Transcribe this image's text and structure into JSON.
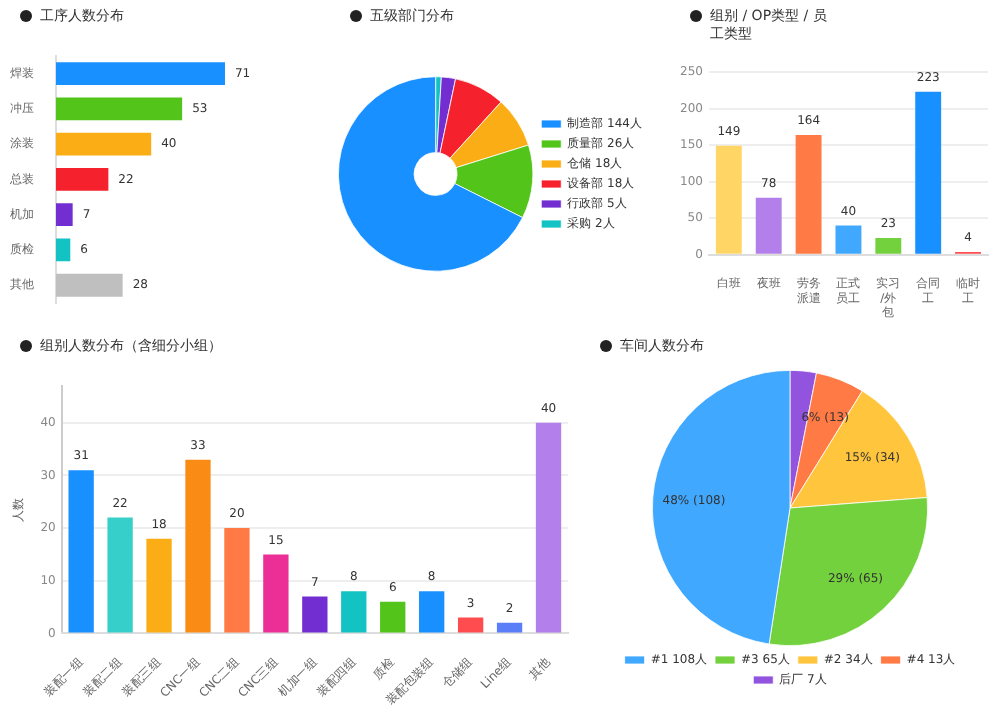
{
  "chart_data": [
    {
      "type": "bar",
      "title": "工序人数分布",
      "orientation": "horizontal",
      "categories": [
        "焊装",
        "冲压",
        "涂装",
        "总装",
        "机加",
        "质检",
        "其他"
      ],
      "values": [
        71,
        53,
        40,
        22,
        7,
        6,
        28
      ],
      "colors": [
        "#1890ff",
        "#52c41a",
        "#faad14",
        "#f5222d",
        "#722ed1",
        "#13c2c2",
        "#bfbfbf"
      ],
      "data_labels": true,
      "tick_labels": "y"
    },
    {
      "type": "donut",
      "title": "五级部门分布",
      "categories": [
        "制造部 144人",
        "质量部 26人",
        "仓储 18人",
        "设备部 18人",
        "行政部 5人",
        "采购 2人"
      ],
      "values": [
        144,
        26,
        18,
        18,
        5,
        2
      ],
      "colors": [
        "#1890ff",
        "#52c41a",
        "#faad14",
        "#f5222d",
        "#722ed1",
        "#13c2c2"
      ],
      "legend": "right"
    },
    {
      "type": "bar",
      "title": "组别 / OP类型 / 员工类型",
      "categories": [
        "白班",
        "夜班",
        "劳务派遣",
        "正式员工",
        "实习/外包",
        "合同工",
        "临时工"
      ],
      "values": [
        149,
        78,
        164,
        40,
        23,
        223,
        4
      ],
      "colors": [
        "#ffd666",
        "#b37feb",
        "#ff7a45",
        "#40a9ff",
        "#73d13d",
        "#1890ff",
        "#ff4d4f"
      ],
      "ylim": [
        0,
        250
      ],
      "yticks": [
        0,
        50,
        100,
        150,
        200,
        250
      ],
      "grid": "y",
      "data_labels": true
    },
    {
      "type": "bar",
      "title": "组别人数分布（含细分小组）",
      "ylabel": "人数",
      "categories": [
        "装配一组",
        "装配二组",
        "装配三组",
        "CNC一组",
        "CNC二组",
        "CNC三组",
        "机加一组",
        "装配四组",
        "质检",
        "装配包装组",
        "仓储组",
        "Line组",
        "其他"
      ],
      "values": [
        31,
        22,
        18,
        33,
        20,
        15,
        7,
        8,
        6,
        8,
        3,
        2,
        40
      ],
      "colors": [
        "#1890ff",
        "#36cfc9",
        "#faad14",
        "#fa8c16",
        "#ff7a45",
        "#eb2f96",
        "#722ed1",
        "#13c2c2",
        "#52c41a",
        "#1890ff",
        "#ff4d4f",
        "#597ef7",
        "#b37feb"
      ],
      "ylim": [
        0,
        47
      ],
      "yticks": [
        0,
        10,
        20,
        30,
        40
      ],
      "grid": "y",
      "data_labels": true
    },
    {
      "type": "pie",
      "title": "车间人数分布",
      "categories": [
        "#1 108人",
        "#3 65人",
        "#2 34人",
        "#4 13人",
        "后厂 7人"
      ],
      "values": [
        108,
        65,
        34,
        13,
        7
      ],
      "colors": [
        "#40a9ff",
        "#73d13d",
        "#ffc53d",
        "#ff7a45",
        "#9254de"
      ],
      "value_labels": [
        "48% (108)",
        "29% (65)",
        "15% (34)",
        "6% (13)",
        null
      ],
      "legend": "bottom"
    }
  ]
}
